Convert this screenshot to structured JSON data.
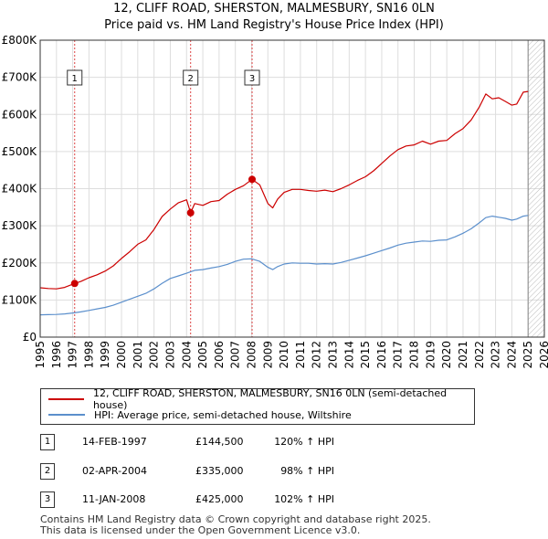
{
  "title_line1": "12, CLIFF ROAD, SHERSTON, MALMESBURY, SN16 0LN",
  "title_line2": "Price paid vs. HM Land Registry's House Price Index (HPI)",
  "legend": {
    "property_label": "12, CLIFF ROAD, SHERSTON, MALMESBURY, SN16 0LN (semi-detached house)",
    "hpi_label": "HPI: Average price, semi-detached house, Wiltshire"
  },
  "colors": {
    "property": "#cc0000",
    "hpi": "#5b8fcc",
    "sale_line": "#dd4444",
    "grid": "#dddddd",
    "hatch": "#bbbbbb"
  },
  "sales": [
    {
      "num": "1",
      "date": "14-FEB-1997",
      "price": "£144,500",
      "hpi": "120% ↑ HPI"
    },
    {
      "num": "2",
      "date": "02-APR-2004",
      "price": "£335,000",
      "hpi": "98% ↑ HPI"
    },
    {
      "num": "3",
      "date": "11-JAN-2008",
      "price": "£425,000",
      "hpi": "102% ↑ HPI"
    }
  ],
  "footer": {
    "line1": "Contains HM Land Registry data © Crown copyright and database right 2025.",
    "line2": "This data is licensed under the Open Government Licence v3.0."
  },
  "chart_data": {
    "type": "line",
    "title": "Price paid vs. HM Land Registry's House Price Index (HPI)",
    "xlim": [
      1995,
      2026
    ],
    "ylim": [
      0,
      800000
    ],
    "x_ticks": [
      1995,
      1996,
      1997,
      1998,
      1999,
      2000,
      2001,
      2002,
      2003,
      2004,
      2005,
      2006,
      2007,
      2008,
      2009,
      2010,
      2011,
      2012,
      2013,
      2014,
      2015,
      2016,
      2017,
      2018,
      2019,
      2020,
      2021,
      2022,
      2023,
      2024,
      2025,
      2026
    ],
    "y_ticks": [
      0,
      100000,
      200000,
      300000,
      400000,
      500000,
      600000,
      700000,
      800000
    ],
    "y_tick_labels": [
      "£0",
      "£100K",
      "£200K",
      "£300K",
      "£400K",
      "£500K",
      "£600K",
      "£700K",
      "£800K"
    ],
    "future_start": 2025.0,
    "series": [
      {
        "name": "12, CLIFF ROAD, SHERSTON, MALMESBURY, SN16 0LN (semi-detached house)",
        "x": [
          1995.0,
          1995.5,
          1996.0,
          1996.5,
          1997.12,
          1997.5,
          1998.0,
          1998.5,
          1999.0,
          1999.5,
          2000.0,
          2000.5,
          2001.0,
          2001.5,
          2002.0,
          2002.5,
          2003.0,
          2003.5,
          2004.0,
          2004.25,
          2004.5,
          2005.0,
          2005.5,
          2006.0,
          2006.5,
          2007.0,
          2007.5,
          2008.03,
          2008.5,
          2009.0,
          2009.3,
          2009.6,
          2010.0,
          2010.5,
          2011.0,
          2011.5,
          2012.0,
          2012.5,
          2013.0,
          2013.5,
          2014.0,
          2014.5,
          2015.0,
          2015.5,
          2016.0,
          2016.5,
          2017.0,
          2017.5,
          2018.0,
          2018.5,
          2019.0,
          2019.5,
          2020.0,
          2020.5,
          2021.0,
          2021.5,
          2022.0,
          2022.4,
          2022.8,
          2023.2,
          2023.6,
          2024.0,
          2024.3,
          2024.7,
          2025.0
        ],
        "values": [
          133000,
          131000,
          130000,
          134000,
          144500,
          150000,
          160000,
          168000,
          178000,
          192000,
          212000,
          230000,
          250000,
          262000,
          290000,
          325000,
          345000,
          362000,
          370000,
          335000,
          360000,
          355000,
          365000,
          368000,
          385000,
          398000,
          408000,
          425000,
          410000,
          360000,
          348000,
          372000,
          390000,
          398000,
          398000,
          395000,
          393000,
          396000,
          392000,
          400000,
          410000,
          422000,
          432000,
          448000,
          468000,
          488000,
          505000,
          515000,
          518000,
          528000,
          520000,
          528000,
          530000,
          548000,
          562000,
          585000,
          620000,
          655000,
          642000,
          645000,
          635000,
          625000,
          628000,
          660000,
          662000
        ]
      },
      {
        "name": "HPI: Average price, semi-detached house, Wiltshire",
        "x": [
          1995.0,
          1995.5,
          1996.0,
          1996.5,
          1997.0,
          1997.5,
          1998.0,
          1998.5,
          1999.0,
          1999.5,
          2000.0,
          2000.5,
          2001.0,
          2001.5,
          2002.0,
          2002.5,
          2003.0,
          2003.5,
          2004.0,
          2004.5,
          2005.0,
          2005.5,
          2006.0,
          2006.5,
          2007.0,
          2007.5,
          2008.0,
          2008.5,
          2009.0,
          2009.3,
          2009.6,
          2010.0,
          2010.5,
          2011.0,
          2011.5,
          2012.0,
          2012.5,
          2013.0,
          2013.5,
          2014.0,
          2014.5,
          2015.0,
          2015.5,
          2016.0,
          2016.5,
          2017.0,
          2017.5,
          2018.0,
          2018.5,
          2019.0,
          2019.5,
          2020.0,
          2020.5,
          2021.0,
          2021.5,
          2022.0,
          2022.4,
          2022.8,
          2023.2,
          2023.6,
          2024.0,
          2024.3,
          2024.7,
          2025.0
        ],
        "values": [
          60000,
          60500,
          61000,
          62500,
          65000,
          68000,
          72000,
          76000,
          80000,
          86000,
          94000,
          102000,
          110000,
          118000,
          130000,
          145000,
          158000,
          165000,
          172000,
          180000,
          182000,
          186000,
          190000,
          196000,
          204000,
          210000,
          211000,
          204000,
          188000,
          182000,
          190000,
          197000,
          200000,
          199000,
          199000,
          197000,
          198000,
          197000,
          201000,
          207000,
          213000,
          219000,
          226000,
          233000,
          240000,
          248000,
          253000,
          256000,
          259000,
          258000,
          261000,
          262000,
          270000,
          280000,
          292000,
          308000,
          322000,
          326000,
          323000,
          320000,
          315000,
          318000,
          326000,
          328000
        ]
      }
    ],
    "sale_points": [
      {
        "label": "1",
        "x": 1997.12,
        "y": 144500
      },
      {
        "label": "2",
        "x": 2004.25,
        "y": 335000
      },
      {
        "label": "3",
        "x": 2008.03,
        "y": 425000
      }
    ]
  }
}
